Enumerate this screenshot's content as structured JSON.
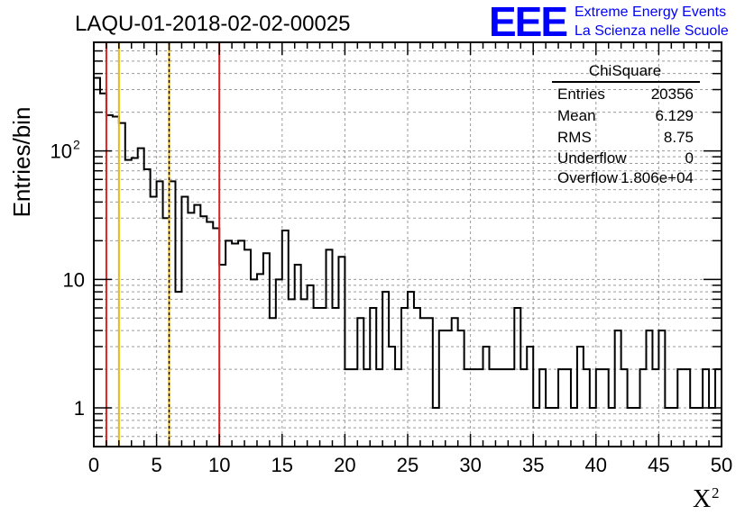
{
  "chart_data": {
    "type": "histogram",
    "title": "LAQU-01-2018-02-02-00025",
    "xlabel": "X",
    "xlabel_sup": "2",
    "ylabel": "Entries/bin",
    "xlim": [
      0,
      50
    ],
    "ylim": [
      0.5,
      700
    ],
    "yscale": "log",
    "grid": true,
    "bin_width": 0.5,
    "x_ticks": [
      "0",
      "5",
      "10",
      "15",
      "20",
      "25",
      "30",
      "35",
      "40",
      "45",
      "50"
    ],
    "y_ticks": [
      {
        "value": 1,
        "label": "1",
        "sup": ""
      },
      {
        "value": 10,
        "label": "10",
        "sup": ""
      },
      {
        "value": 100,
        "label": "10",
        "sup": "2"
      }
    ],
    "values": [
      370,
      280,
      190,
      185,
      165,
      85,
      88,
      105,
      72,
      44,
      58,
      30,
      58,
      8,
      44,
      33,
      38,
      31,
      28,
      25,
      13,
      20,
      19,
      20,
      17,
      10,
      11,
      16,
      5,
      10,
      24,
      7,
      13,
      7,
      9,
      6,
      6,
      17,
      6,
      15,
      2,
      2,
      5,
      2,
      6,
      2,
      8,
      3,
      2,
      6,
      8,
      6,
      5,
      5,
      1,
      4,
      4,
      5,
      4,
      2,
      2,
      2,
      3,
      2,
      2,
      2,
      2,
      6,
      2,
      3,
      1,
      2,
      1,
      1,
      2,
      2,
      1,
      3,
      2,
      1,
      2,
      2,
      1,
      4,
      2,
      1,
      1,
      2,
      4,
      2,
      4,
      1,
      1,
      2,
      2,
      1,
      1,
      2,
      1,
      2
    ],
    "reference_lines": [
      {
        "x": 1,
        "color": "#e02020",
        "style": "solid"
      },
      {
        "x": 2,
        "color": "#f0b800",
        "style": "solid"
      },
      {
        "x": 6,
        "color": "#f0b800",
        "style": "solid"
      },
      {
        "x": 6,
        "color": "#000000",
        "style": "dashed"
      },
      {
        "x": 10,
        "color": "#e02020",
        "style": "solid"
      }
    ],
    "stats_box": {
      "title": "ChiSquare",
      "rows": [
        {
          "label": "Entries",
          "value": "20356"
        },
        {
          "label": "Mean",
          "value": "6.129"
        },
        {
          "label": "RMS",
          "value": "8.75"
        },
        {
          "label": "Underflow",
          "value": "0"
        },
        {
          "label": "Overflow",
          "value": "1.806e+04"
        }
      ]
    }
  },
  "logo": {
    "mark": "EEE",
    "line1": "Extreme Energy Events",
    "line2": "La Scienza nelle Scuole"
  }
}
